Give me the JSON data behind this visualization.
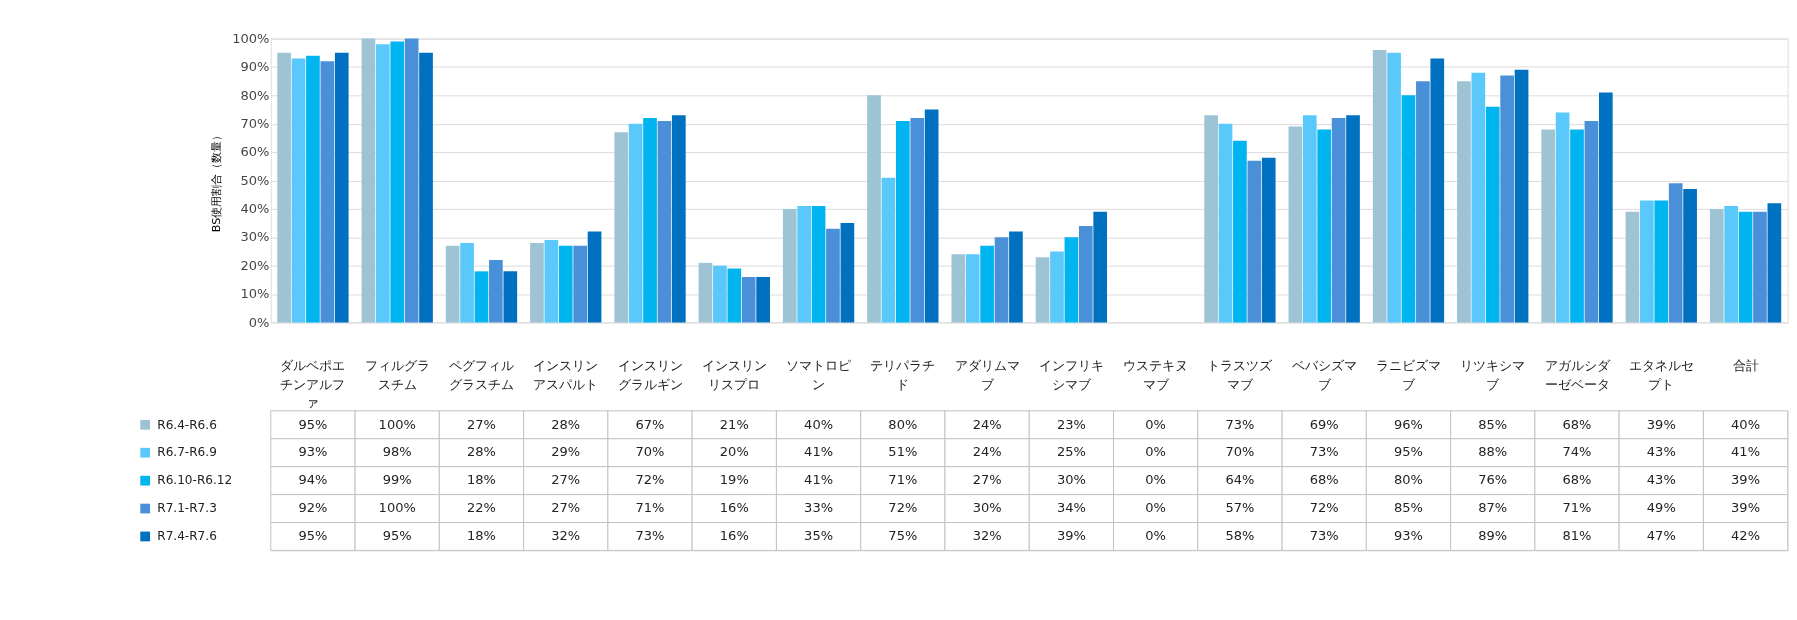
{
  "chart_data": {
    "type": "bar",
    "ylabel": "BS使用割合（数量）",
    "categories": [
      "ダルベポエチンアルファ",
      "フィルグラスチム",
      "ペグフィルグラスチム",
      "インスリンアスパルト",
      "インスリングラルギン",
      "インスリンリスプロ",
      "ソマトロピン",
      "テリパラチド",
      "アダリムマブ",
      "インフリキシマブ",
      "ウステキヌマブ",
      "トラスツズマブ",
      "ベバシズマブ",
      "ラニビズマブ",
      "リツキシマブ",
      "アガルシダーゼベータ",
      "エタネルセプト",
      "合計"
    ],
    "series": [
      {
        "name": "R6.4-R6.6",
        "color": "#9dc3d4",
        "values": [
          95,
          100,
          27,
          28,
          67,
          21,
          40,
          80,
          24,
          23,
          0,
          73,
          69,
          96,
          85,
          68,
          39,
          40
        ],
        "value_labels": [
          "95%",
          "100%",
          "27%",
          "28%",
          "67%",
          "21%",
          "40%",
          "80%",
          "24%",
          "23%",
          "0%",
          "73%",
          "69%",
          "96%",
          "85%",
          "68%",
          "39%",
          "40%"
        ]
      },
      {
        "name": "R6.7-R6.9",
        "color": "#5ac8fa",
        "values": [
          93,
          98,
          28,
          29,
          70,
          20,
          41,
          51,
          24,
          25,
          0,
          70,
          73,
          95,
          88,
          74,
          43,
          41
        ],
        "value_labels": [
          "93%",
          "98%",
          "28%",
          "29%",
          "70%",
          "20%",
          "41%",
          "51%",
          "24%",
          "25%",
          "0%",
          "70%",
          "73%",
          "95%",
          "88%",
          "74%",
          "43%",
          "41%"
        ]
      },
      {
        "name": "R6.10-R6.12",
        "color": "#00b4f0",
        "values": [
          94,
          99,
          18,
          27,
          72,
          19,
          41,
          71,
          27,
          30,
          0,
          64,
          68,
          80,
          76,
          68,
          43,
          39
        ],
        "value_labels": [
          "94%",
          "99%",
          "18%",
          "27%",
          "72%",
          "19%",
          "41%",
          "71%",
          "27%",
          "30%",
          "0%",
          "64%",
          "68%",
          "80%",
          "76%",
          "68%",
          "43%",
          "39%"
        ]
      },
      {
        "name": "R7.1-R7.3",
        "color": "#4a90d9",
        "values": [
          92,
          100,
          22,
          27,
          71,
          16,
          33,
          72,
          30,
          34,
          0,
          57,
          72,
          85,
          87,
          71,
          49,
          39
        ],
        "value_labels": [
          "92%",
          "100%",
          "22%",
          "27%",
          "71%",
          "16%",
          "33%",
          "72%",
          "30%",
          "34%",
          "0%",
          "57%",
          "72%",
          "85%",
          "87%",
          "71%",
          "49%",
          "39%"
        ]
      },
      {
        "name": "R7.4-R7.6",
        "color": "#0070c0",
        "values": [
          95,
          95,
          18,
          32,
          73,
          16,
          35,
          75,
          32,
          39,
          0,
          58,
          73,
          93,
          89,
          81,
          47,
          42
        ],
        "value_labels": [
          "95%",
          "95%",
          "18%",
          "32%",
          "73%",
          "16%",
          "35%",
          "75%",
          "32%",
          "39%",
          "0%",
          "58%",
          "73%",
          "93%",
          "89%",
          "81%",
          "47%",
          "42%"
        ]
      }
    ],
    "ylim": [
      0,
      100
    ],
    "yticks": [
      {
        "value": 0,
        "label": "0%"
      },
      {
        "value": 10,
        "label": "10%"
      },
      {
        "value": 20,
        "label": "20%"
      },
      {
        "value": 30,
        "label": "30%"
      },
      {
        "value": 40,
        "label": "40%"
      },
      {
        "value": 50,
        "label": "50%"
      },
      {
        "value": 60,
        "label": "60%"
      },
      {
        "value": 70,
        "label": "70%"
      },
      {
        "value": 80,
        "label": "80%"
      },
      {
        "value": 90,
        "label": "90%"
      },
      {
        "value": 100,
        "label": "100%"
      }
    ],
    "grid": "y",
    "legend": "bottom left"
  }
}
